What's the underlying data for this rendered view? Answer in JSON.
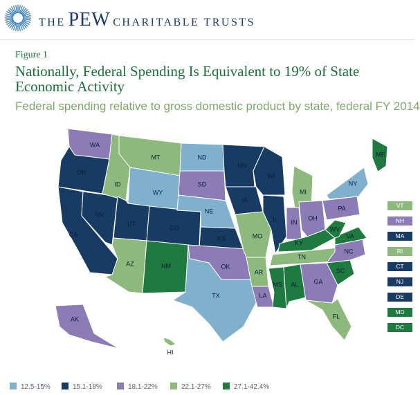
{
  "header": {
    "brand_prefix": "THE",
    "brand_name": "PEW",
    "brand_suffix": "CHARITABLE TRUSTS"
  },
  "figure_label": "Figure 1",
  "title": "Nationally, Federal Spending Is Equivalent to 19% of State Economic Activity",
  "subtitle": "Federal spending relative to gross domestic product by state, federal FY 2014",
  "colors": {
    "c1": "#7fb1cf",
    "c2": "#173b62",
    "c3": "#8b7bb7",
    "c4": "#8eb97c",
    "c5": "#1f7a40"
  },
  "legend": [
    {
      "label": "12.5-15%",
      "color": "#7fb1cf"
    },
    {
      "label": "15.1-18%",
      "color": "#173b62"
    },
    {
      "label": "18.1-22%",
      "color": "#8b7bb7"
    },
    {
      "label": "22.1-27%",
      "color": "#8eb97c"
    },
    {
      "label": "27.1-42.4%",
      "color": "#1f7a40"
    }
  ],
  "states": [
    {
      "abbr": "WA",
      "color": "#8b7bb7"
    },
    {
      "abbr": "OR",
      "color": "#173b62"
    },
    {
      "abbr": "CA",
      "color": "#173b62"
    },
    {
      "abbr": "NV",
      "color": "#173b62"
    },
    {
      "abbr": "ID",
      "color": "#8eb97c"
    },
    {
      "abbr": "MT",
      "color": "#8eb97c"
    },
    {
      "abbr": "WY",
      "color": "#7fb1cf"
    },
    {
      "abbr": "UT",
      "color": "#173b62"
    },
    {
      "abbr": "AZ",
      "color": "#8eb97c"
    },
    {
      "abbr": "CO",
      "color": "#173b62"
    },
    {
      "abbr": "NM",
      "color": "#1f7a40"
    },
    {
      "abbr": "ND",
      "color": "#7fb1cf"
    },
    {
      "abbr": "SD",
      "color": "#8b7bb7"
    },
    {
      "abbr": "NE",
      "color": "#7fb1cf"
    },
    {
      "abbr": "KS",
      "color": "#173b62"
    },
    {
      "abbr": "OK",
      "color": "#8b7bb7"
    },
    {
      "abbr": "TX",
      "color": "#7fb1cf"
    },
    {
      "abbr": "MN",
      "color": "#173b62"
    },
    {
      "abbr": "IA",
      "color": "#173b62"
    },
    {
      "abbr": "MO",
      "color": "#8eb97c"
    },
    {
      "abbr": "AR",
      "color": "#8eb97c"
    },
    {
      "abbr": "LA",
      "color": "#8b7bb7"
    },
    {
      "abbr": "WI",
      "color": "#173b62"
    },
    {
      "abbr": "IL",
      "color": "#173b62"
    },
    {
      "abbr": "MI",
      "color": "#8eb97c"
    },
    {
      "abbr": "IN",
      "color": "#8b7bb7"
    },
    {
      "abbr": "OH",
      "color": "#8b7bb7"
    },
    {
      "abbr": "KY",
      "color": "#1f7a40"
    },
    {
      "abbr": "TN",
      "color": "#8eb97c"
    },
    {
      "abbr": "MS",
      "color": "#1f7a40"
    },
    {
      "abbr": "AL",
      "color": "#1f7a40"
    },
    {
      "abbr": "GA",
      "color": "#8b7bb7"
    },
    {
      "abbr": "FL",
      "color": "#8eb97c"
    },
    {
      "abbr": "SC",
      "color": "#1f7a40"
    },
    {
      "abbr": "NC",
      "color": "#8b7bb7"
    },
    {
      "abbr": "VA",
      "color": "#1f7a40"
    },
    {
      "abbr": "WV",
      "color": "#1f7a40"
    },
    {
      "abbr": "PA",
      "color": "#8b7bb7"
    },
    {
      "abbr": "NY",
      "color": "#7fb1cf"
    },
    {
      "abbr": "ME",
      "color": "#1f7a40"
    },
    {
      "abbr": "AK",
      "color": "#8b7bb7"
    },
    {
      "abbr": "HI",
      "color": "#8eb97c"
    }
  ],
  "small_states": [
    {
      "abbr": "VT",
      "color": "#8eb97c"
    },
    {
      "abbr": "NH",
      "color": "#8b7bb7"
    },
    {
      "abbr": "MA",
      "color": "#173b62"
    },
    {
      "abbr": "RI",
      "color": "#8eb97c"
    },
    {
      "abbr": "CT",
      "color": "#173b62"
    },
    {
      "abbr": "NJ",
      "color": "#173b62"
    },
    {
      "abbr": "DE",
      "color": "#173b62"
    },
    {
      "abbr": "MD",
      "color": "#1f7a40"
    },
    {
      "abbr": "DC",
      "color": "#1f7a40"
    }
  ]
}
